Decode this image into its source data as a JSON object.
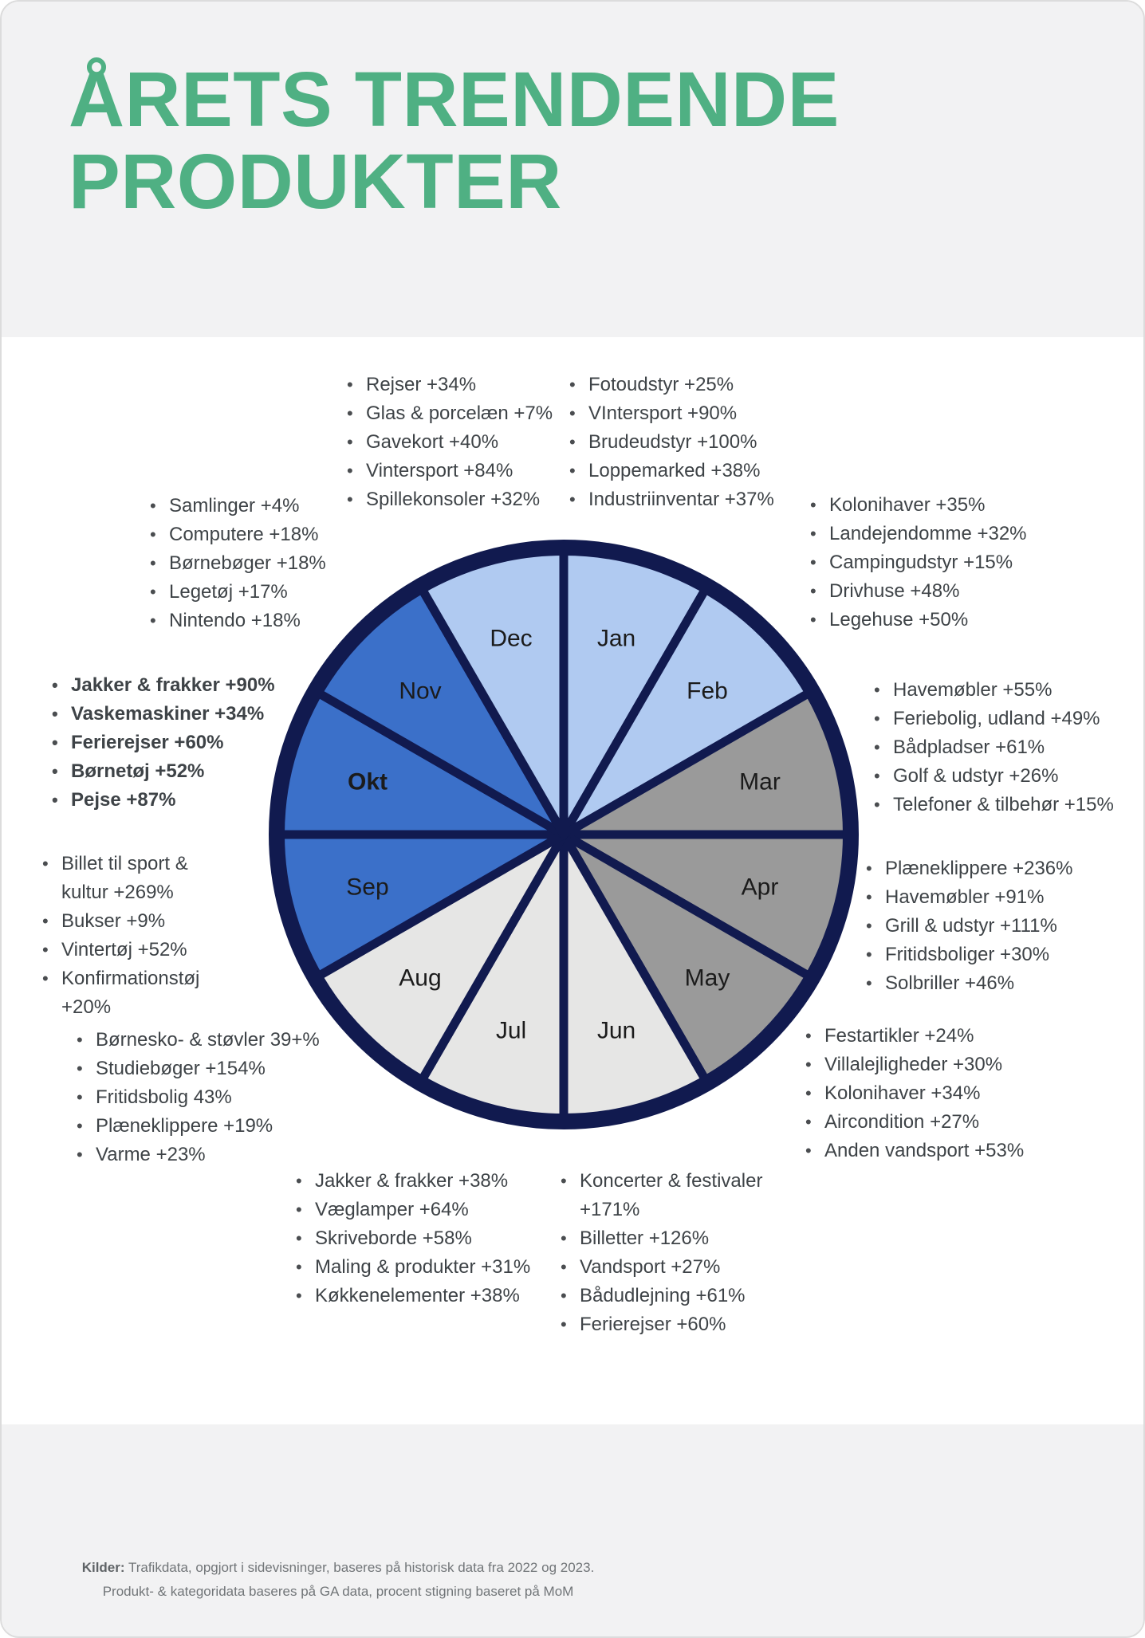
{
  "header": {
    "title_lines": [
      "ÅRETS TRENDENDE",
      "PRODUKTER"
    ],
    "title_color": "#4fb083"
  },
  "chart_data": {
    "type": "pie",
    "title": "Årets trendende produkter",
    "legend_position": "around",
    "equal_slices": true,
    "slice_value_percent": 8.33,
    "palette": {
      "light_blue": "#b0caf1",
      "mid_blue": "#3b70c9",
      "mid_gray": "#9a9a9a",
      "light_gray": "#e6e6e5",
      "outline_navy": "#111a4f"
    },
    "months": [
      {
        "label": "Jan",
        "color": "#b0caf1",
        "value": 1,
        "items": [
          "Fotoudstyr +25%",
          "VIntersport +90%",
          "Brudeudstyr +100%",
          "Loppemarked +38%",
          "Industriinventar +37%"
        ]
      },
      {
        "label": "Feb",
        "color": "#b0caf1",
        "value": 1,
        "items": [
          "Kolonihaver +35%",
          "Landejendomme +32%",
          "Campingudstyr +15%",
          "Drivhuse +48%",
          "Legehuse +50%"
        ]
      },
      {
        "label": "Mar",
        "color": "#9a9a9a",
        "value": 1,
        "items": [
          "Havemøbler +55%",
          "Feriebolig, udland +49%",
          "Bådpladser +61%",
          "Golf & udstyr +26%",
          "Telefoner & tilbehør +15%"
        ]
      },
      {
        "label": "Apr",
        "color": "#9a9a9a",
        "value": 1,
        "items": [
          "Plæneklippere +236%",
          "Havemøbler +91%",
          "Grill & udstyr +111%",
          "Fritidsboliger +30%",
          "Solbriller +46%"
        ]
      },
      {
        "label": "May",
        "color": "#9a9a9a",
        "value": 1,
        "items": [
          "Festartikler +24%",
          "Villalejligheder +30%",
          "Kolonihaver +34%",
          "Aircondition +27%",
          "Anden vandsport +53%"
        ]
      },
      {
        "label": "Jun",
        "color": "#e6e6e5",
        "value": 1,
        "items": [
          "Koncerter & festivaler +171%",
          "Billetter +126%",
          "Vandsport +27%",
          "Bådudlejning +61%",
          "Ferierejser +60%"
        ]
      },
      {
        "label": "Jul",
        "color": "#e6e6e5",
        "value": 1,
        "items": [
          "Jakker & frakker +38%",
          "Væglamper +64%",
          "Skriveborde +58%",
          "Maling & produkter +31%",
          "Køkkenelementer +38%"
        ]
      },
      {
        "label": "Aug",
        "color": "#e6e6e5",
        "value": 1,
        "items": [
          "Børnesko- & støvler 39+%",
          "Studiebøger +154%",
          "Fritidsbolig 43%",
          "Plæneklippere +19%",
          "Varme +23%"
        ]
      },
      {
        "label": "Sep",
        "color": "#3b70c9",
        "value": 1,
        "items": [
          "Billet til sport & kultur +269%",
          "Bukser +9%",
          "Vintertøj +52%",
          "Konfirmationstøj +20%"
        ]
      },
      {
        "label": "Okt",
        "color": "#3b70c9",
        "value": 1,
        "bold": true,
        "items": [
          "Jakker & frakker +90%",
          "Vaskemaskiner +34%",
          "Ferierejser +60%",
          "Børnetøj +52%",
          "Pejse +87%"
        ]
      },
      {
        "label": "Nov",
        "color": "#3b70c9",
        "value": 1,
        "items": [
          "Samlinger +4%",
          "Computere +18%",
          "Børnebøger +18%",
          "Legetøj +17%",
          "Nintendo +18%"
        ]
      },
      {
        "label": "Dec",
        "color": "#b0caf1",
        "value": 1,
        "items": [
          "Rejser +34%",
          "Glas & porcelæn +7%",
          "Gavekort +40%",
          "Vintersport +84%",
          "Spillekonsoler +32%"
        ]
      }
    ]
  },
  "footer": {
    "kilder_label": "Kilder:",
    "source_line1": " Trafikdata, opgjort i sidevisninger, baseres på historisk data fra 2022 og 2023.",
    "source_line2": "Produkt- & kategoridata baseres på GA data, procent stigning baseret på MoM"
  }
}
